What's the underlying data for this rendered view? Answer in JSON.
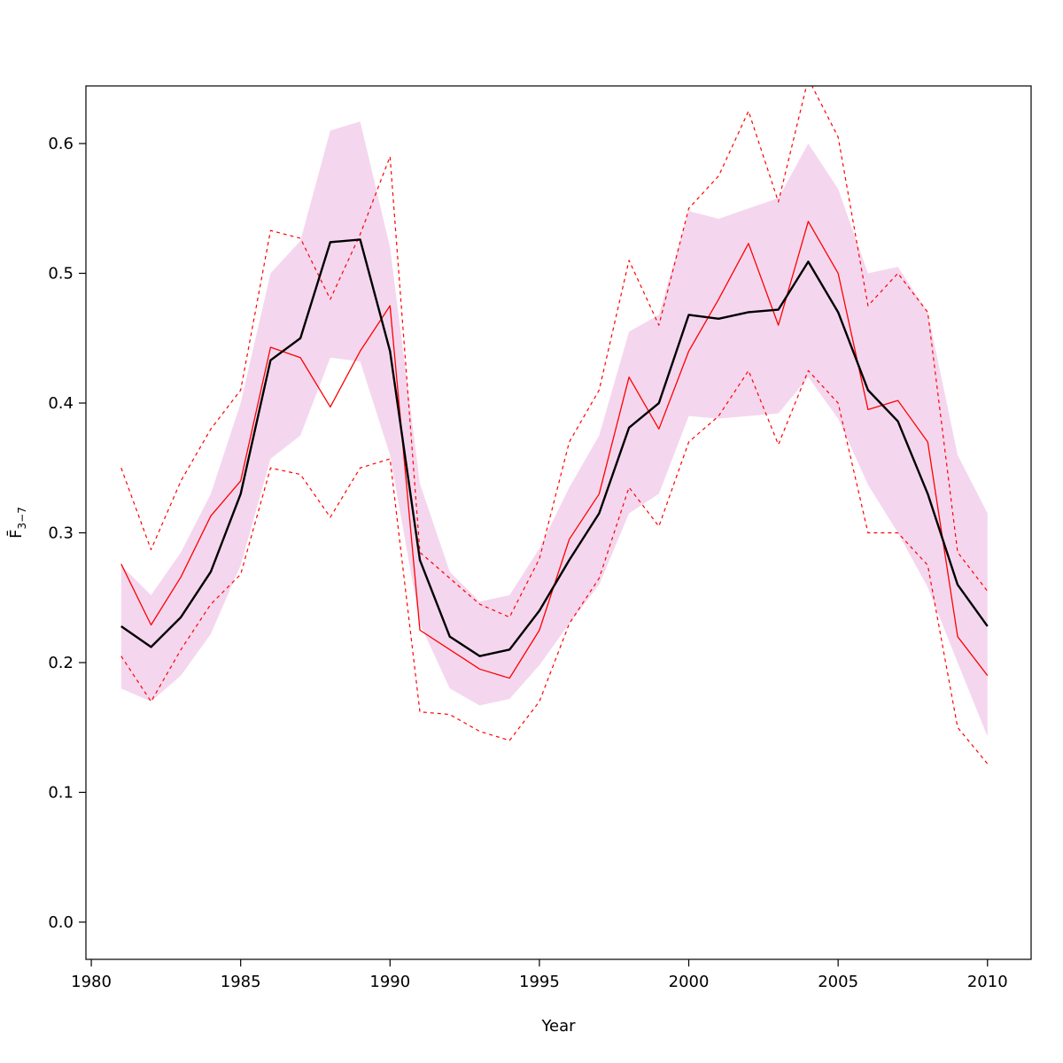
{
  "figure": {
    "background": "#ffffff",
    "axis_color": "#000000"
  },
  "chart_data": {
    "type": "line",
    "title": "",
    "xlabel": "Year",
    "ylabel_main": "F̄",
    "ylabel_sub": "3−7",
    "xlim": [
      1979.82,
      2011.46
    ],
    "ylim": [
      -0.0287,
      0.6444
    ],
    "grid": false,
    "legend": "none",
    "x": [
      1981,
      1982,
      1983,
      1984,
      1985,
      1986,
      1987,
      1988,
      1989,
      1990,
      1991,
      1992,
      1993,
      1994,
      1995,
      1996,
      1997,
      1998,
      1999,
      2000,
      2001,
      2002,
      2003,
      2004,
      2005,
      2006,
      2007,
      2008,
      2009,
      2010
    ],
    "band": {
      "name": "estimate-confidence-band",
      "color": "#f4d7ee",
      "lower": [
        0.18,
        0.17,
        0.19,
        0.222,
        0.275,
        0.357,
        0.375,
        0.435,
        0.432,
        0.36,
        0.23,
        0.18,
        0.167,
        0.172,
        0.198,
        0.23,
        0.26,
        0.315,
        0.33,
        0.39,
        0.388,
        0.39,
        0.392,
        0.42,
        0.388,
        0.337,
        0.3,
        0.258,
        0.2,
        0.143
      ],
      "upper": [
        0.275,
        0.252,
        0.285,
        0.33,
        0.4,
        0.5,
        0.525,
        0.61,
        0.617,
        0.52,
        0.338,
        0.27,
        0.247,
        0.252,
        0.288,
        0.335,
        0.375,
        0.455,
        0.468,
        0.548,
        0.542,
        0.55,
        0.558,
        0.6,
        0.565,
        0.5,
        0.505,
        0.47,
        0.36,
        0.315
      ]
    },
    "series": [
      {
        "name": "comparison-lower-ci",
        "color": "#ff0000",
        "style": "dashed",
        "width": 1.2,
        "values": [
          0.205,
          0.17,
          0.21,
          0.245,
          0.268,
          0.35,
          0.345,
          0.312,
          0.35,
          0.357,
          0.162,
          0.16,
          0.147,
          0.14,
          0.17,
          0.23,
          0.265,
          0.335,
          0.305,
          0.37,
          0.39,
          0.425,
          0.368,
          0.425,
          0.4,
          0.3,
          0.3,
          0.275,
          0.15,
          0.122
        ]
      },
      {
        "name": "comparison-upper-ci",
        "color": "#ff0000",
        "style": "dashed",
        "width": 1.2,
        "values": [
          0.35,
          0.287,
          0.34,
          0.38,
          0.41,
          0.533,
          0.527,
          0.48,
          0.53,
          0.59,
          0.285,
          0.265,
          0.245,
          0.235,
          0.28,
          0.37,
          0.41,
          0.51,
          0.46,
          0.55,
          0.575,
          0.625,
          0.555,
          0.65,
          0.605,
          0.475,
          0.5,
          0.47,
          0.285,
          0.255
        ]
      },
      {
        "name": "comparison-mean",
        "color": "#ff0000",
        "style": "solid",
        "width": 1.3,
        "values": [
          0.276,
          0.229,
          0.266,
          0.313,
          0.34,
          0.443,
          0.435,
          0.397,
          0.44,
          0.475,
          0.225,
          0.21,
          0.195,
          0.188,
          0.225,
          0.295,
          0.33,
          0.42,
          0.38,
          0.44,
          0.48,
          0.523,
          0.46,
          0.54,
          0.5,
          0.395,
          0.402,
          0.37,
          0.22,
          0.19
        ]
      },
      {
        "name": "estimate-mean",
        "color": "#000000",
        "style": "solid",
        "width": 2.4,
        "values": [
          0.228,
          0.212,
          0.235,
          0.27,
          0.33,
          0.433,
          0.45,
          0.524,
          0.526,
          0.44,
          0.279,
          0.22,
          0.205,
          0.21,
          0.24,
          0.279,
          0.315,
          0.381,
          0.4,
          0.468,
          0.465,
          0.47,
          0.472,
          0.509,
          0.47,
          0.41,
          0.386,
          0.33,
          0.26,
          0.228
        ]
      }
    ],
    "xticks": {
      "values": [
        1980,
        1985,
        1990,
        1995,
        2000,
        2005,
        2010
      ],
      "labels": [
        "1980",
        "1985",
        "1990",
        "1995",
        "2000",
        "2005",
        "2010"
      ]
    },
    "yticks": {
      "values": [
        0.0,
        0.1,
        0.2,
        0.3,
        0.4,
        0.5,
        0.6
      ],
      "labels": [
        "0.0",
        "0.1",
        "0.2",
        "0.3",
        "0.4",
        "0.5",
        "0.6"
      ]
    }
  }
}
